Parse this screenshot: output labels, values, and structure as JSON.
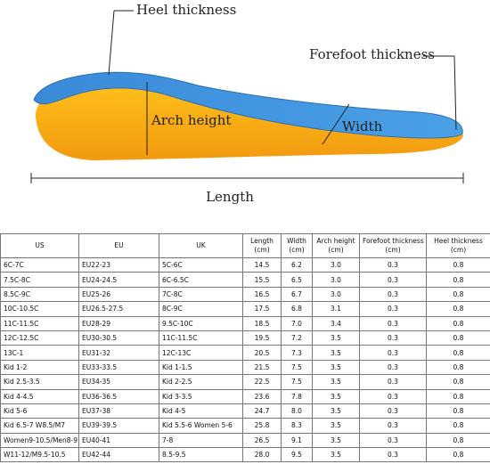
{
  "diagram": {
    "labels": {
      "heel": "Heel thickness",
      "forefoot": "Forefoot thickness",
      "arch": "Arch height",
      "width": "Width",
      "length": "Length"
    }
  },
  "table": {
    "header": [
      [
        "US"
      ],
      [
        "EU"
      ],
      [
        "UK"
      ],
      [
        "Length",
        "(cm)"
      ],
      [
        "Width",
        "(cm)"
      ],
      [
        "Arch height",
        "(cm)"
      ],
      [
        "Forefoot thickness",
        "(cm)"
      ],
      [
        "Heel thickness",
        "(cm)"
      ]
    ],
    "rows": [
      [
        "6C-7C",
        "EU22-23",
        "5C-6C",
        "14.5",
        "6.2",
        "3.0",
        "0.3",
        "0.8"
      ],
      [
        "7.5C-8C",
        "EU24-24.5",
        "6C-6.5C",
        "15.5",
        "6.5",
        "3.0",
        "0.3",
        "0.8"
      ],
      [
        "8.5C-9C",
        "EU25-26",
        "7C-8C",
        "16.5",
        "6.7",
        "3.0",
        "0.3",
        "0.8"
      ],
      [
        "10C-10.5C",
        "EU26.5-27.5",
        "8C-9C",
        "17.5",
        "6.8",
        "3.1",
        "0.3",
        "0.8"
      ],
      [
        "11C-11.5C",
        "EU28-29",
        "9.5C-10C",
        "18.5",
        "7.0",
        "3.4",
        "0.3",
        "0.8"
      ],
      [
        "12C-12.5C",
        "EU30-30.5",
        "11C-11.5C",
        "19.5",
        "7.2",
        "3.5",
        "0.3",
        "0.8"
      ],
      [
        "13C-1",
        "EU31-32",
        "12C-13C",
        "20.5",
        "7.3",
        "3.5",
        "0.3",
        "0.8"
      ],
      [
        "Kid 1-2",
        "EU33-33.5",
        "Kid 1-1.5",
        "21.5",
        "7.5",
        "3.5",
        "0.3",
        "0.8"
      ],
      [
        "Kid 2.5-3.5",
        "EU34-35",
        "Kid 2-2.5",
        "22.5",
        "7.5",
        "3.5",
        "0.3",
        "0.8"
      ],
      [
        "Kid 4-4.5",
        "EU36-36.5",
        "Kid 3-3.5",
        "23.6",
        "7.8",
        "3.5",
        "0.3",
        "0.8"
      ],
      [
        "Kid 5-6",
        "EU37-38",
        "Kid 4-5",
        "24.7",
        "8.0",
        "3.5",
        "0.3",
        "0.8"
      ],
      [
        "Kid 6.5-7 W8.5/M7",
        "EU39-39.5",
        "Kid 5.5-6 Women 5-6",
        "25.8",
        "8.3",
        "3.5",
        "0.3",
        "0.8"
      ],
      [
        "Women9-10.5/Men8-9",
        "EU40-41",
        "7-8",
        "26.5",
        "9.1",
        "3.5",
        "0.3",
        "0.8"
      ],
      [
        "W11-12/M9.5-10.5",
        "EU42-44",
        "8.5-9.5",
        "28.0",
        "9.5",
        "3.5",
        "0.3",
        "0.8"
      ]
    ]
  }
}
